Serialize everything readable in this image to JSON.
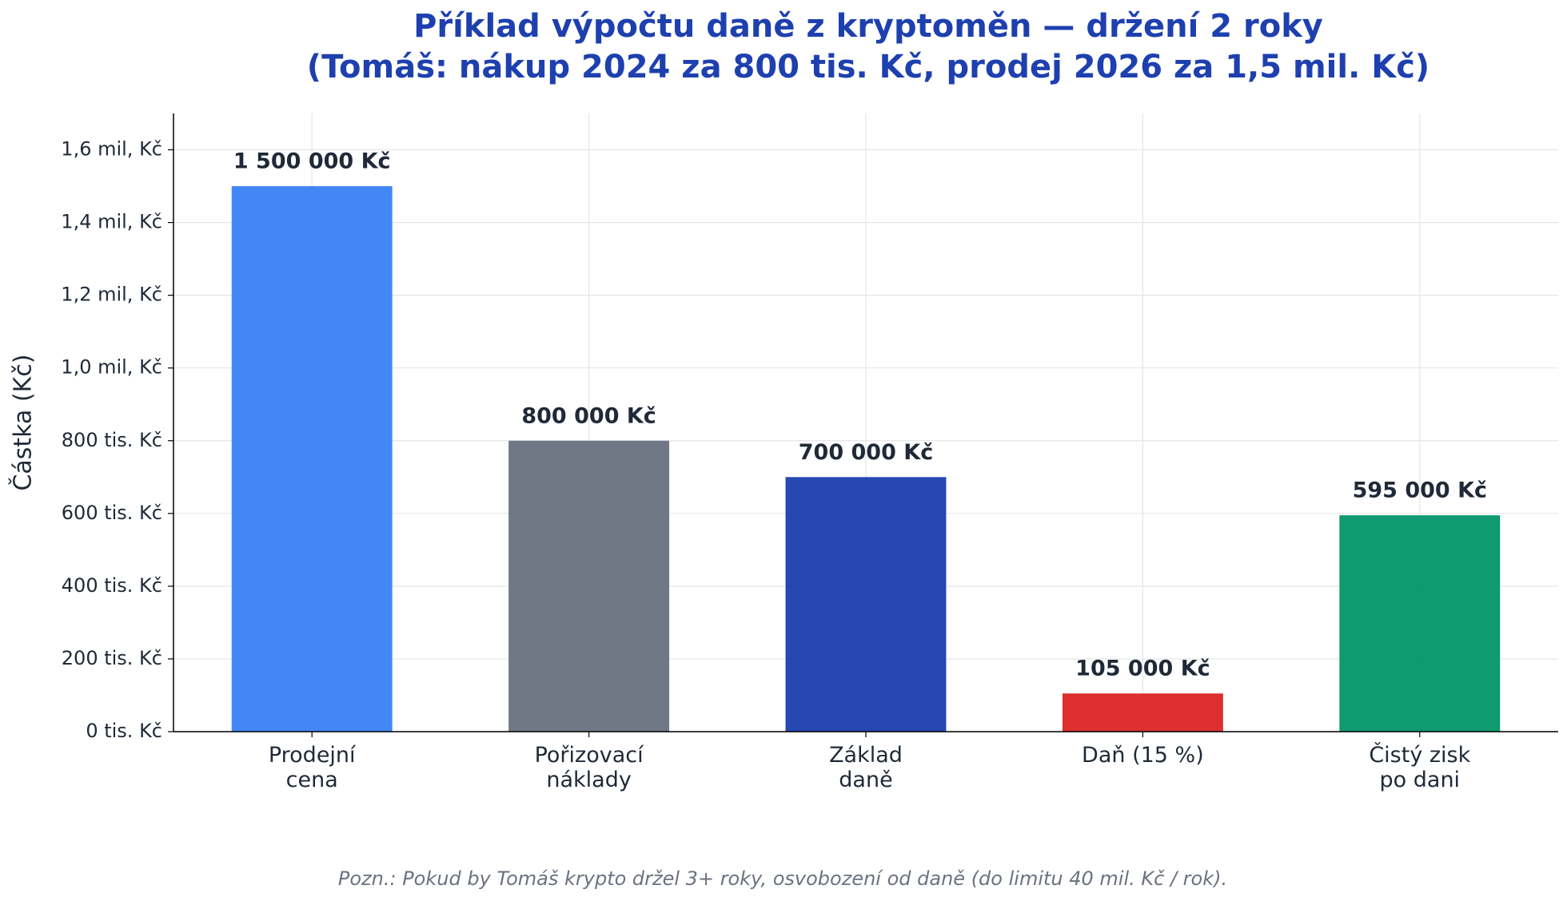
{
  "chart_data": {
    "type": "bar",
    "title": "Příklad výpočtu daně z kryptoměn — držení 2 roky",
    "subtitle": "(Tomáš: nákup 2024 za 800 tis. Kč, prodej 2026 za 1,5 mil. Kč)",
    "y_label": "Částka (Kč)",
    "note": "Pozn.: Pokud by Tomáš krypto držel 3+ roky, osvobození od daně (do limitu 40 mil. Kč / rok).",
    "categories": [
      "Prodejní\ncena",
      "Pořizovací\nnáklady",
      "Základ\ndaně",
      "Daň (15 %)",
      "Čistý zisk\npo dani"
    ],
    "values": [
      1500000,
      800000,
      700000,
      105000,
      595000
    ],
    "value_labels": [
      "1 500 000 Kč",
      "800 000 Kč",
      "700 000 Kč",
      "105 000 Kč",
      "595 000 Kč"
    ],
    "colors": [
      "#3b82f6",
      "#6b7280",
      "#1e40af",
      "#dc2626",
      "#059669"
    ],
    "ylim": [
      0,
      1700000
    ],
    "yticks": [
      {
        "value": 0,
        "label": "0 tis. Kč"
      },
      {
        "value": 200000,
        "label": "200 tis. Kč"
      },
      {
        "value": 400000,
        "label": "400 tis. Kč"
      },
      {
        "value": 600000,
        "label": "600 tis. Kč"
      },
      {
        "value": 800000,
        "label": "800 tis. Kč"
      },
      {
        "value": 1000000,
        "label": "1,0 mil, Kč"
      },
      {
        "value": 1200000,
        "label": "1,2 mil, Kč"
      },
      {
        "value": 1400000,
        "label": "1,4 mil, Kč"
      },
      {
        "value": 1600000,
        "label": "1,6 mil, Kč"
      }
    ],
    "grid": true
  }
}
